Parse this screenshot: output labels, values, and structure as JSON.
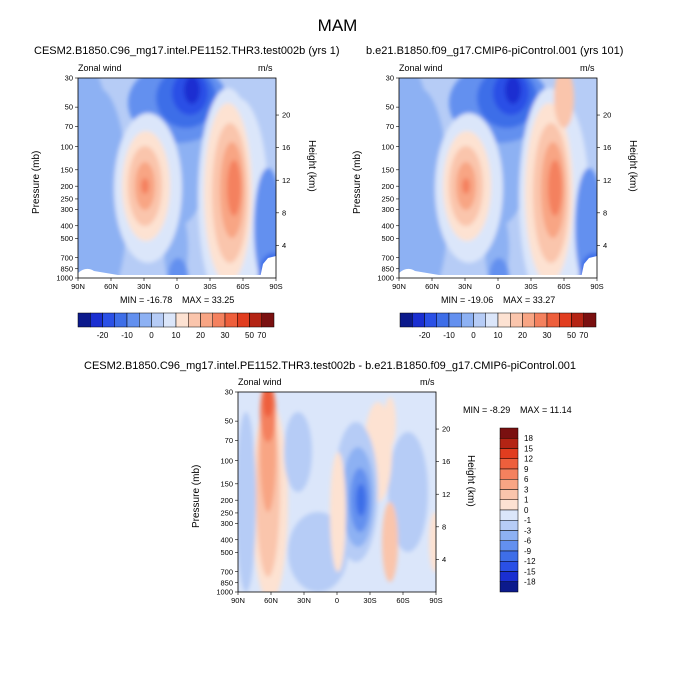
{
  "title": "MAM",
  "variable_label": "Zonal wind",
  "units_label": "m/s",
  "colorbar_abs": {
    "labels": [
      "-20",
      "-10",
      "0",
      "10",
      "20",
      "30",
      "50",
      "70"
    ],
    "colors": [
      "#0c1a8c",
      "#1a2fd1",
      "#2a50e6",
      "#3e6ee8",
      "#6390ef",
      "#8db1f3",
      "#b6ccf6",
      "#dbe6fa",
      "#fde2d2",
      "#fac5ac",
      "#f8a584",
      "#f4815e",
      "#ee5f3c",
      "#e13d1f",
      "#b42414",
      "#7a1010"
    ]
  },
  "colorbar_diff": {
    "labels": [
      "18",
      "15",
      "12",
      "9",
      "6",
      "3",
      "1",
      "0",
      "-1",
      "-3",
      "-6",
      "-9",
      "-12",
      "-15",
      "-18"
    ],
    "colors": [
      "#7a1010",
      "#b42414",
      "#e13d1f",
      "#ee5f3c",
      "#f4815e",
      "#f8a584",
      "#fac5ac",
      "#fde2d2",
      "#dbe6fa",
      "#b6ccf6",
      "#8db1f3",
      "#6390ef",
      "#3e6ee8",
      "#2a50e6",
      "#1a2fd1",
      "#0c1a8c"
    ]
  },
  "chart_data": [
    {
      "type": "contour",
      "title": "CESM2.B1850.C96_mg17.intel.PE1152.THR3.test002b (yrs 1)",
      "variable": "Zonal wind",
      "units": "m/s",
      "xlabel": "",
      "ylabel": "Pressure (mb)",
      "ylabel_right": "Height (km)",
      "x_ticks": [
        "90N",
        "60N",
        "30N",
        "0",
        "30S",
        "60S",
        "90S"
      ],
      "y_ticks": [
        "30",
        "50",
        "70",
        "100",
        "150",
        "200",
        "250",
        "300",
        "400",
        "500",
        "700",
        "850",
        "1000"
      ],
      "y_right_ticks": [
        "20",
        "16",
        "12",
        "8",
        "4"
      ],
      "min_label": "MIN = -16.78",
      "max_label": "MAX = 33.25",
      "min": -16.78,
      "max": 33.25
    },
    {
      "type": "contour",
      "title": "b.e21.B1850.f09_g17.CMIP6-piControl.001 (yrs 101)",
      "variable": "Zonal wind",
      "units": "m/s",
      "xlabel": "",
      "ylabel": "Pressure (mb)",
      "ylabel_right": "Height (km)",
      "x_ticks": [
        "90N",
        "60N",
        "30N",
        "0",
        "30S",
        "60S",
        "90S"
      ],
      "y_ticks": [
        "30",
        "50",
        "70",
        "100",
        "150",
        "200",
        "250",
        "300",
        "400",
        "500",
        "700",
        "850",
        "1000"
      ],
      "y_right_ticks": [
        "20",
        "16",
        "12",
        "8",
        "4"
      ],
      "min_label": "MIN = -19.06",
      "max_label": "MAX = 33.27",
      "min": -19.06,
      "max": 33.27
    },
    {
      "type": "contour",
      "title": "CESM2.B1850.C96_mg17.intel.PE1152.THR3.test002b - b.e21.B1850.f09_g17.CMIP6-piControl.001",
      "variable": "Zonal wind",
      "units": "m/s",
      "xlabel": "",
      "ylabel": "Pressure (mb)",
      "ylabel_right": "Height (km)",
      "x_ticks": [
        "90N",
        "60N",
        "30N",
        "0",
        "30S",
        "60S",
        "90S"
      ],
      "y_ticks": [
        "30",
        "50",
        "70",
        "100",
        "150",
        "200",
        "250",
        "300",
        "400",
        "500",
        "700",
        "850",
        "1000"
      ],
      "y_right_ticks": [
        "20",
        "16",
        "12",
        "8",
        "4"
      ],
      "min_label": "MIN = -8.29",
      "max_label": "MAX = 11.14",
      "min": -8.29,
      "max": 11.14
    }
  ]
}
